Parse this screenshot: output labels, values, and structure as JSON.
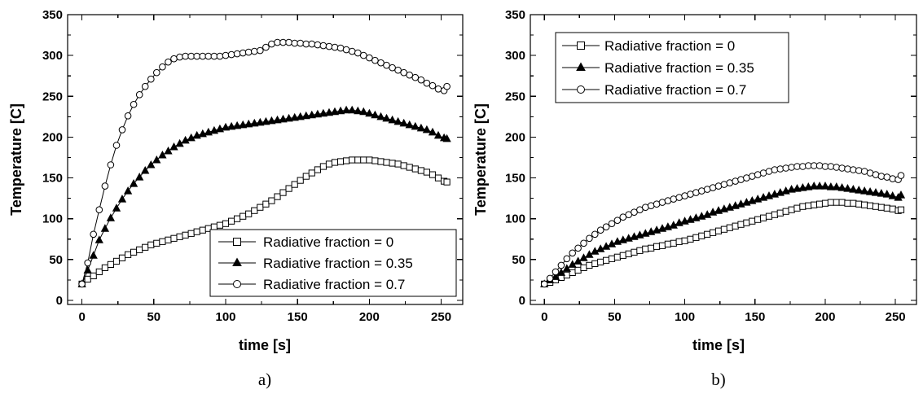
{
  "chart_data": [
    {
      "type": "line",
      "panel_label": "a)",
      "xlabel": "time [s]",
      "ylabel": "Temperature [C]",
      "xlim": [
        -10,
        265
      ],
      "ylim": [
        -5,
        350
      ],
      "xticks": [
        0,
        50,
        100,
        150,
        200,
        250
      ],
      "yticks": [
        0,
        50,
        100,
        150,
        200,
        250,
        300,
        350
      ],
      "legend_position": "bottom-right",
      "x": [
        0,
        4,
        8,
        12,
        16,
        20,
        24,
        28,
        32,
        36,
        40,
        44,
        48,
        52,
        56,
        60,
        64,
        68,
        72,
        76,
        80,
        84,
        88,
        92,
        96,
        100,
        104,
        108,
        112,
        116,
        120,
        124,
        128,
        132,
        136,
        140,
        144,
        148,
        152,
        156,
        160,
        164,
        168,
        172,
        176,
        180,
        184,
        188,
        192,
        196,
        200,
        204,
        208,
        212,
        216,
        220,
        224,
        228,
        232,
        236,
        240,
        244,
        248,
        252,
        254
      ],
      "series": [
        {
          "name": "Radiative fraction = 0",
          "marker": "open-square",
          "values": [
            20,
            26,
            30,
            35,
            40,
            44,
            48,
            52,
            56,
            59,
            62,
            65,
            68,
            70,
            72,
            74,
            76,
            78,
            80,
            82,
            84,
            86,
            88,
            90,
            92,
            94,
            97,
            100,
            103,
            106,
            110,
            114,
            118,
            122,
            127,
            132,
            137,
            142,
            147,
            152,
            156,
            160,
            164,
            167,
            169,
            170,
            171,
            172,
            172,
            172,
            172,
            171,
            170,
            169,
            168,
            167,
            165,
            163,
            161,
            159,
            157,
            154,
            150,
            146,
            145
          ]
        },
        {
          "name": "Radiative fraction = 0.35",
          "marker": "filled-triangle",
          "values": [
            20,
            37,
            55,
            74,
            88,
            101,
            113,
            124,
            134,
            143,
            151,
            159,
            166,
            172,
            178,
            183,
            188,
            192,
            196,
            199,
            202,
            204,
            206,
            208,
            210,
            212,
            213,
            214,
            215,
            216,
            217,
            218,
            219,
            220,
            221,
            222,
            223,
            224,
            225,
            226,
            227,
            228,
            229,
            230,
            231,
            232,
            233,
            233,
            232,
            231,
            229,
            227,
            225,
            223,
            221,
            219,
            217,
            215,
            213,
            211,
            209,
            206,
            202,
            199,
            198
          ]
        },
        {
          "name": "Radiative fraction = 0.7",
          "marker": "open-circle",
          "values": [
            20,
            46,
            81,
            111,
            140,
            166,
            190,
            209,
            226,
            240,
            252,
            262,
            271,
            279,
            286,
            292,
            296,
            298,
            299,
            299,
            299,
            299,
            299,
            299,
            299,
            300,
            301,
            302,
            303,
            304,
            305,
            306,
            310,
            314,
            316,
            316,
            316,
            315,
            315,
            314,
            314,
            313,
            312,
            311,
            310,
            309,
            307,
            305,
            303,
            300,
            297,
            294,
            291,
            288,
            285,
            282,
            279,
            276,
            273,
            270,
            266,
            263,
            259,
            257,
            262
          ]
        }
      ]
    },
    {
      "type": "line",
      "panel_label": "b)",
      "xlabel": "time [s]",
      "ylabel": "Temperature [C]",
      "xlim": [
        -10,
        265
      ],
      "ylim": [
        -5,
        350
      ],
      "xticks": [
        0,
        50,
        100,
        150,
        200,
        250
      ],
      "yticks": [
        0,
        50,
        100,
        150,
        200,
        250,
        300,
        350
      ],
      "legend_position": "top-left",
      "x": [
        0,
        4,
        8,
        12,
        16,
        20,
        24,
        28,
        32,
        36,
        40,
        44,
        48,
        52,
        56,
        60,
        64,
        68,
        72,
        76,
        80,
        84,
        88,
        92,
        96,
        100,
        104,
        108,
        112,
        116,
        120,
        124,
        128,
        132,
        136,
        140,
        144,
        148,
        152,
        156,
        160,
        164,
        168,
        172,
        176,
        180,
        184,
        188,
        192,
        196,
        200,
        204,
        208,
        212,
        216,
        220,
        224,
        228,
        232,
        236,
        240,
        244,
        248,
        252,
        254
      ],
      "series": [
        {
          "name": "Radiative fraction = 0",
          "marker": "open-square",
          "values": [
            20,
            22,
            25,
            28,
            31,
            34,
            37,
            40,
            43,
            45,
            47,
            49,
            51,
            53,
            55,
            57,
            59,
            61,
            63,
            64,
            66,
            67,
            69,
            70,
            72,
            73,
            75,
            77,
            79,
            81,
            83,
            85,
            87,
            89,
            91,
            93,
            95,
            97,
            99,
            101,
            103,
            105,
            107,
            109,
            111,
            113,
            115,
            116,
            117,
            118,
            119,
            120,
            120,
            120,
            119,
            119,
            118,
            117,
            116,
            115,
            114,
            113,
            112,
            110,
            111
          ]
        },
        {
          "name": "Radiative fraction = 0.35",
          "marker": "filled-triangle",
          "values": [
            20,
            25,
            29,
            34,
            39,
            44,
            48,
            52,
            56,
            60,
            63,
            66,
            69,
            72,
            74,
            76,
            78,
            80,
            82,
            84,
            86,
            88,
            90,
            92,
            95,
            97,
            99,
            101,
            103,
            105,
            108,
            110,
            112,
            114,
            116,
            118,
            120,
            122,
            124,
            126,
            128,
            130,
            132,
            134,
            136,
            137,
            138,
            139,
            140,
            140,
            140,
            139,
            139,
            138,
            137,
            136,
            135,
            134,
            133,
            132,
            131,
            130,
            128,
            126,
            129
          ]
        },
        {
          "name": "Radiative fraction = 0.7",
          "marker": "open-circle",
          "values": [
            20,
            27,
            35,
            43,
            51,
            58,
            64,
            70,
            76,
            81,
            86,
            90,
            94,
            98,
            102,
            105,
            108,
            111,
            114,
            116,
            118,
            120,
            122,
            124,
            126,
            128,
            130,
            132,
            134,
            136,
            138,
            140,
            142,
            144,
            146,
            148,
            150,
            152,
            154,
            156,
            158,
            160,
            161,
            162,
            163,
            164,
            164,
            165,
            165,
            165,
            164,
            164,
            163,
            162,
            161,
            160,
            159,
            158,
            156,
            154,
            152,
            151,
            149,
            148,
            153
          ]
        }
      ]
    }
  ]
}
